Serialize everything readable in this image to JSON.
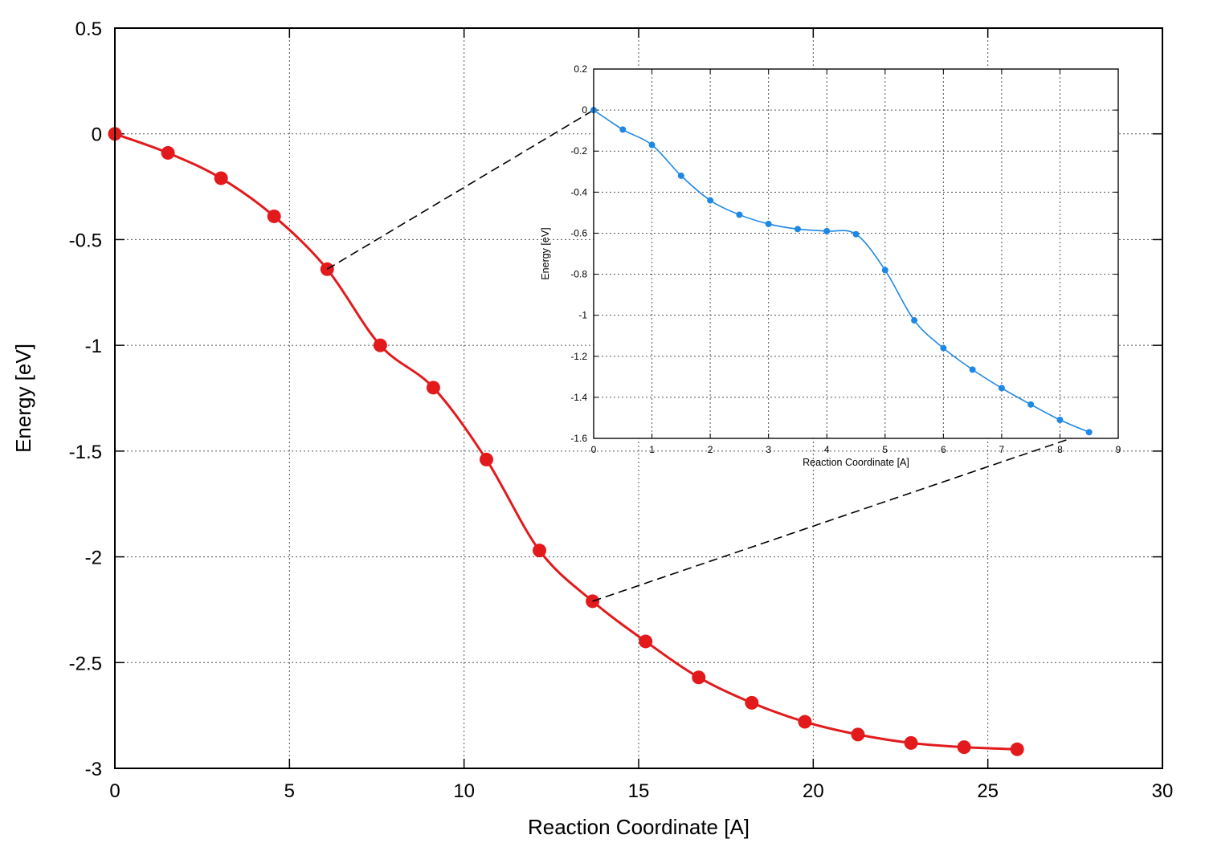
{
  "chart_data": [
    {
      "id": "main",
      "type": "line",
      "title": "",
      "xlabel": "Reaction Coordinate [A]",
      "ylabel": "Energy [eV]",
      "xlim": [
        0,
        30
      ],
      "ylim": [
        -3,
        0.5
      ],
      "grid": true,
      "x_ticks": [
        0,
        5,
        10,
        15,
        20,
        25,
        30
      ],
      "y_ticks": [
        0.5,
        0,
        -0.5,
        -1,
        -1.5,
        -2,
        -2.5,
        -3
      ],
      "x_tick_labels": [
        "0",
        "5",
        "10",
        "15",
        "20",
        "25",
        "30"
      ],
      "y_tick_labels": [
        "0.5",
        "0",
        "-0.5",
        "-1",
        "-1.5",
        "-2",
        "-2.5",
        "-3"
      ],
      "color": "#e31a1c",
      "series": [
        {
          "name": "Energy",
          "x": [
            0,
            1.52,
            3.04,
            4.56,
            6.08,
            7.6,
            9.12,
            10.64,
            12.16,
            13.68,
            15.2,
            16.72,
            18.24,
            19.76,
            21.28,
            22.8,
            24.32,
            25.84
          ],
          "y": [
            0,
            -0.09,
            -0.21,
            -0.39,
            -0.64,
            -1.0,
            -1.2,
            -1.54,
            -1.97,
            -2.21,
            -2.4,
            -2.57,
            -2.69,
            -2.78,
            -2.84,
            -2.88,
            -2.9,
            -2.91
          ]
        }
      ]
    },
    {
      "id": "inset",
      "type": "line",
      "title": "",
      "xlabel": "Reaction Coordinate [A]",
      "ylabel": "Energy [eV]",
      "xlim": [
        0,
        9
      ],
      "ylim": [
        -1.6,
        0.2
      ],
      "grid": true,
      "x_ticks": [
        0,
        1,
        2,
        3,
        4,
        5,
        6,
        7,
        8,
        9
      ],
      "y_ticks": [
        0.2,
        0,
        -0.2,
        -0.4,
        -0.6,
        -0.8,
        -1,
        -1.2,
        -1.4,
        -1.6
      ],
      "x_tick_labels": [
        "0",
        "1",
        "2",
        "3",
        "4",
        "5",
        "6",
        "7",
        "8",
        "9"
      ],
      "y_tick_labels": [
        "0.2",
        "0",
        "-0.2",
        "-0.4",
        "-0.6",
        "-0.8",
        "-1",
        "-1.2",
        "-1.4",
        "-1.6"
      ],
      "color": "#1e88e5",
      "series": [
        {
          "name": "Energy",
          "x": [
            0,
            0.5,
            1.0,
            1.5,
            2.0,
            2.5,
            3.0,
            3.5,
            4.0,
            4.5,
            5.0,
            5.5,
            6.0,
            6.5,
            7.0,
            7.5,
            8.0,
            8.5
          ],
          "y": [
            0,
            -0.095,
            -0.17,
            -0.32,
            -0.44,
            -0.51,
            -0.555,
            -0.58,
            -0.59,
            -0.605,
            -0.78,
            -1.025,
            -1.16,
            -1.265,
            -1.355,
            -1.435,
            -1.51,
            -1.57
          ]
        }
      ]
    }
  ],
  "zoom_connectors": {
    "from_points": [
      [
        6.08,
        -0.64
      ],
      [
        13.68,
        -2.21
      ]
    ],
    "to_points": [
      [
        0,
        0
      ],
      [
        8.5,
        -1.57
      ]
    ]
  }
}
